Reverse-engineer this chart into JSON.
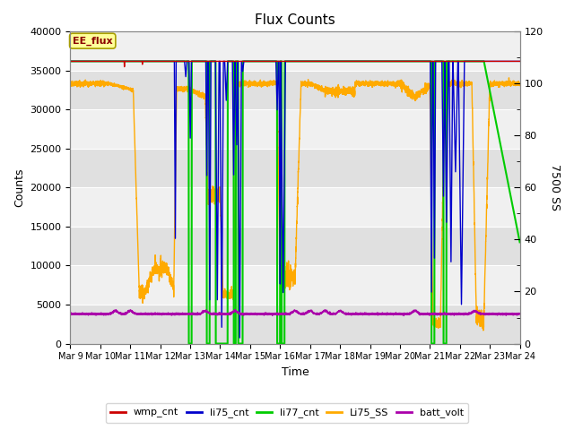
{
  "title": "Flux Counts",
  "xlabel": "Time",
  "ylabel_left": "Counts",
  "ylabel_right": "7500 SS",
  "annotation": "EE_flux",
  "ylim_left": [
    0,
    40000
  ],
  "ylim_right": [
    0,
    120
  ],
  "figsize": [
    6.4,
    4.8
  ],
  "dpi": 100,
  "colors": {
    "wmp_cnt": "#cc0000",
    "li75_cnt": "#0000cc",
    "li77_cnt": "#00cc00",
    "Li75_SS": "#ffaa00",
    "batt_volt": "#aa00aa"
  },
  "bg_color": "#ffffff",
  "plot_bg_color": "#e8e8e8",
  "band_light": "#f0f0f0",
  "band_dark": "#e0e0e0",
  "grid_color": "#ffffff",
  "legend_entries": [
    "wmp_cnt",
    "li75_cnt",
    "li77_cnt",
    "Li75_SS",
    "batt_volt"
  ]
}
